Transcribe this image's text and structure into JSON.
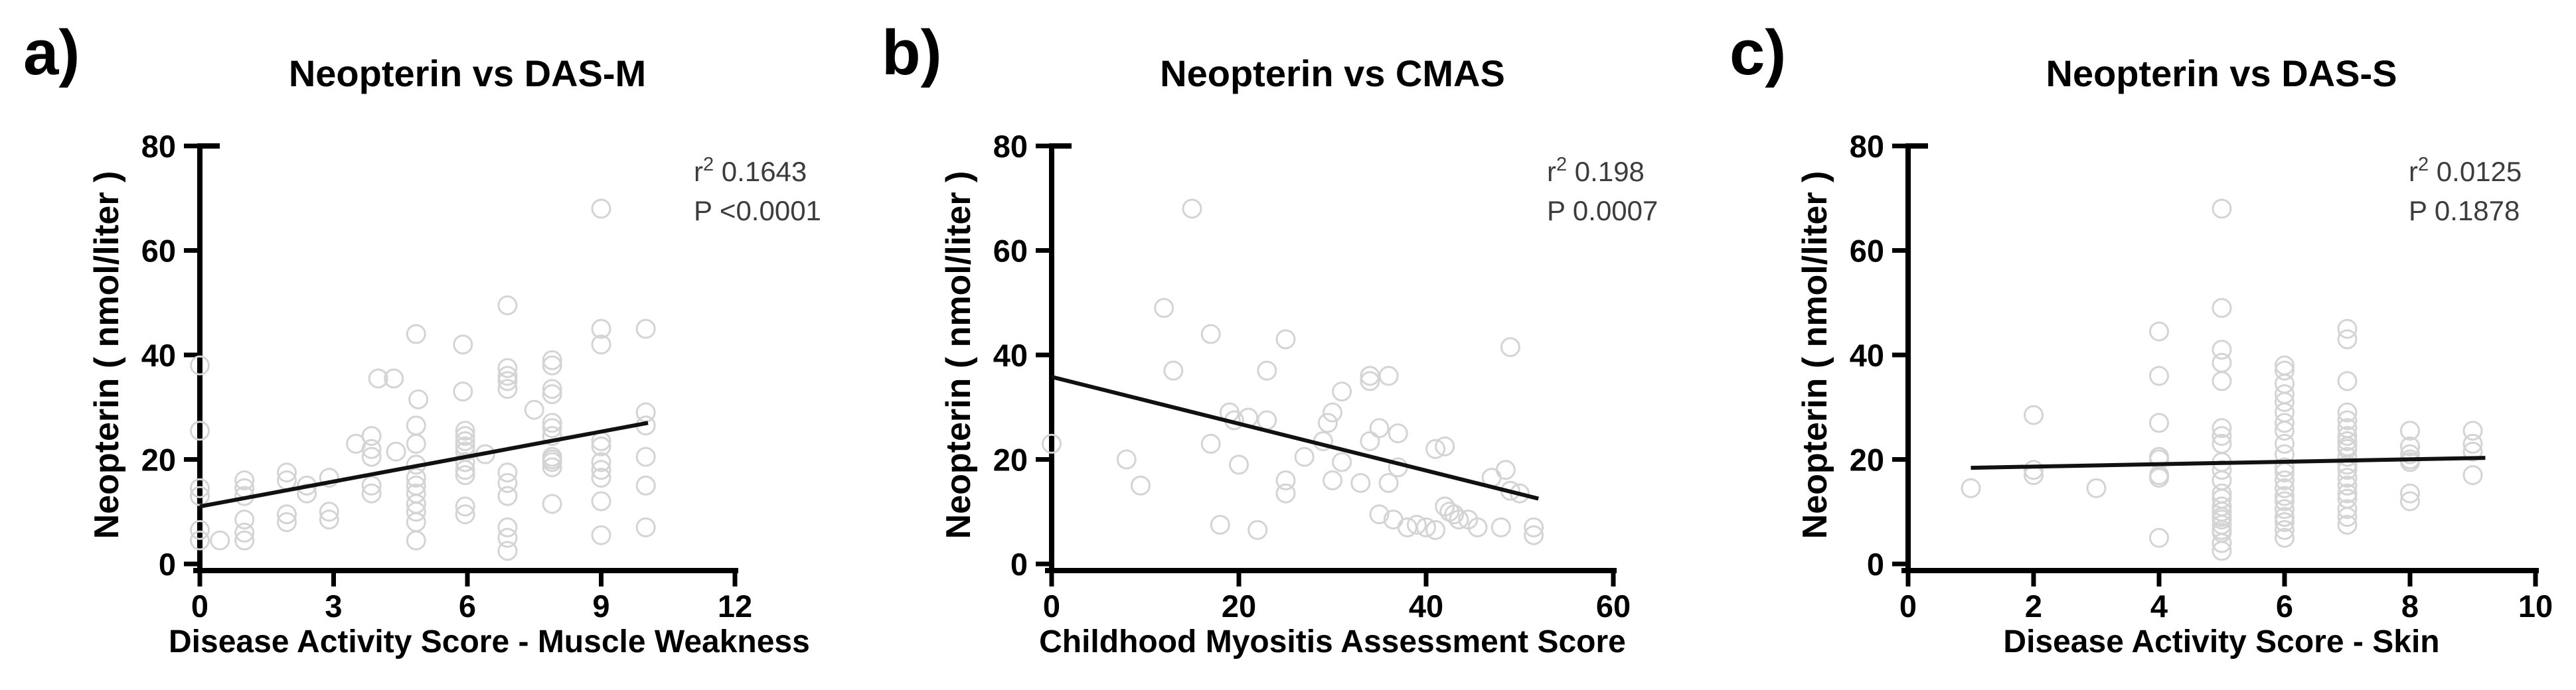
{
  "figure": {
    "background_color": "#ffffff",
    "point_color": "#d4d4d4",
    "regression_color": "#111111",
    "axis_color": "#000000",
    "stats_text_color": "#3c3c3c"
  },
  "chart_data": [
    {
      "type": "scatter",
      "panel_letter": "a)",
      "title": "Neopterin vs DAS-M",
      "xlabel": "Disease Activity Score - Muscle Weakness",
      "ylabel": "Neopterin ( nmol/liter )",
      "stats": {
        "r_base": "r",
        "r_sup": "2",
        "r_value": " 0.1643",
        "p_text": "P <0.0001"
      },
      "xlim": [
        0,
        12
      ],
      "ylim": [
        0,
        80
      ],
      "xticks": [
        0,
        3,
        6,
        9,
        12
      ],
      "yticks": [
        0,
        20,
        40,
        60,
        80
      ],
      "grid": false,
      "regression": {
        "x1": 0,
        "y1": 11,
        "x2": 10.05,
        "y2": 27
      },
      "points": [
        [
          0,
          38
        ],
        [
          0,
          25.5
        ],
        [
          0,
          14.5
        ],
        [
          0,
          13
        ],
        [
          0,
          6.5
        ],
        [
          0,
          4.5
        ],
        [
          0.45,
          4.5
        ],
        [
          1,
          16
        ],
        [
          1,
          14.5
        ],
        [
          1,
          13
        ],
        [
          1,
          8.5
        ],
        [
          1,
          6
        ],
        [
          1,
          4.5
        ],
        [
          1.95,
          17.5
        ],
        [
          1.95,
          16
        ],
        [
          1.95,
          9.5
        ],
        [
          1.95,
          8
        ],
        [
          2.4,
          15
        ],
        [
          2.4,
          13.5
        ],
        [
          2.9,
          16.5
        ],
        [
          2.9,
          10
        ],
        [
          2.9,
          8.5
        ],
        [
          3.5,
          23
        ],
        [
          3.85,
          24.5
        ],
        [
          3.85,
          22
        ],
        [
          3.85,
          20.5
        ],
        [
          3.85,
          15
        ],
        [
          3.85,
          13.5
        ],
        [
          4,
          35.5
        ],
        [
          4.35,
          35.5
        ],
        [
          4.4,
          21.5
        ],
        [
          4.85,
          44
        ],
        [
          4.9,
          31.5
        ],
        [
          4.85,
          26.5
        ],
        [
          4.85,
          23
        ],
        [
          4.85,
          19
        ],
        [
          4.85,
          16.5
        ],
        [
          4.85,
          15
        ],
        [
          4.85,
          13.5
        ],
        [
          4.85,
          11.5
        ],
        [
          4.85,
          10
        ],
        [
          4.85,
          8
        ],
        [
          4.85,
          4.5
        ],
        [
          5.9,
          42
        ],
        [
          5.9,
          33
        ],
        [
          5.95,
          25.5
        ],
        [
          5.95,
          24.5
        ],
        [
          5.95,
          23.5
        ],
        [
          5.95,
          22.5
        ],
        [
          5.95,
          21.5
        ],
        [
          5.95,
          19.5
        ],
        [
          5.95,
          18
        ],
        [
          5.95,
          17
        ],
        [
          5.95,
          11
        ],
        [
          5.95,
          9.5
        ],
        [
          6.4,
          21
        ],
        [
          6.9,
          49.5
        ],
        [
          6.9,
          37.5
        ],
        [
          6.9,
          36
        ],
        [
          6.9,
          35
        ],
        [
          6.9,
          33.5
        ],
        [
          6.9,
          17.5
        ],
        [
          6.9,
          15.5
        ],
        [
          6.9,
          13
        ],
        [
          6.9,
          7
        ],
        [
          6.9,
          5
        ],
        [
          6.9,
          2.5
        ],
        [
          7.5,
          29.5
        ],
        [
          7.9,
          39
        ],
        [
          7.9,
          38
        ],
        [
          7.9,
          33.5
        ],
        [
          7.9,
          32.5
        ],
        [
          7.9,
          27
        ],
        [
          7.9,
          26
        ],
        [
          7.9,
          24.5
        ],
        [
          7.9,
          20.5
        ],
        [
          7.9,
          20
        ],
        [
          7.9,
          19.5
        ],
        [
          7.9,
          18.5
        ],
        [
          7.9,
          11.5
        ],
        [
          9,
          68
        ],
        [
          9,
          45
        ],
        [
          9,
          42
        ],
        [
          9,
          23.5
        ],
        [
          9,
          22.5
        ],
        [
          9,
          19.5
        ],
        [
          9,
          18
        ],
        [
          9,
          16.5
        ],
        [
          9,
          12
        ],
        [
          9,
          5.5
        ],
        [
          10,
          45
        ],
        [
          10,
          29
        ],
        [
          10,
          26.5
        ],
        [
          10,
          20.5
        ],
        [
          10,
          15
        ],
        [
          10,
          7
        ]
      ]
    },
    {
      "type": "scatter",
      "panel_letter": "b)",
      "title": "Neopterin vs CMAS",
      "xlabel": "Childhood Myositis Assessment Score",
      "ylabel": "Neopterin ( nmol/liter )",
      "stats": {
        "r_base": "r",
        "r_sup": "2",
        "r_value": " 0.198",
        "p_text": "P 0.0007"
      },
      "xlim": [
        0,
        60
      ],
      "ylim": [
        0,
        80
      ],
      "xticks": [
        0,
        20,
        40,
        60
      ],
      "yticks": [
        0,
        20,
        40,
        60,
        80
      ],
      "grid": false,
      "regression": {
        "x1": 0,
        "y1": 35.8,
        "x2": 52,
        "y2": 12.5
      },
      "points": [
        [
          0,
          23
        ],
        [
          8,
          20
        ],
        [
          9.5,
          15
        ],
        [
          12,
          49
        ],
        [
          13,
          37
        ],
        [
          15,
          68
        ],
        [
          17,
          44
        ],
        [
          17,
          23
        ],
        [
          18,
          7.5
        ],
        [
          19,
          29
        ],
        [
          19.5,
          27.5
        ],
        [
          20,
          19
        ],
        [
          21,
          28
        ],
        [
          22,
          6.5
        ],
        [
          23,
          37
        ],
        [
          23,
          27.5
        ],
        [
          25,
          43
        ],
        [
          25,
          16
        ],
        [
          25,
          13.5
        ],
        [
          27,
          20.5
        ],
        [
          29,
          23.5
        ],
        [
          29.5,
          27
        ],
        [
          30,
          29
        ],
        [
          30,
          16
        ],
        [
          31,
          33
        ],
        [
          31,
          19.5
        ],
        [
          33,
          15.5
        ],
        [
          34,
          36
        ],
        [
          34,
          35
        ],
        [
          34,
          23.5
        ],
        [
          35,
          26
        ],
        [
          35,
          9.5
        ],
        [
          36,
          36
        ],
        [
          36,
          15.5
        ],
        [
          36.5,
          8.5
        ],
        [
          37,
          25
        ],
        [
          37,
          18.5
        ],
        [
          38,
          7
        ],
        [
          39,
          7.5
        ],
        [
          40,
          7
        ],
        [
          41,
          6.5
        ],
        [
          41,
          22
        ],
        [
          42,
          22.5
        ],
        [
          42,
          11
        ],
        [
          42.5,
          10
        ],
        [
          43,
          9.5
        ],
        [
          43.5,
          8.5
        ],
        [
          44.5,
          8.5
        ],
        [
          45.5,
          7
        ],
        [
          47,
          16.5
        ],
        [
          48.5,
          18
        ],
        [
          49,
          41.5
        ],
        [
          49,
          14
        ],
        [
          50,
          13.5
        ],
        [
          48,
          7
        ],
        [
          51.5,
          7
        ],
        [
          51.5,
          5.5
        ]
      ]
    },
    {
      "type": "scatter",
      "panel_letter": "c)",
      "title": "Neopterin vs DAS-S",
      "xlabel": "Disease Activity Score - Skin",
      "ylabel": "Neopterin ( nmol/liter )",
      "stats": {
        "r_base": "r",
        "r_sup": "2",
        "r_value": " 0.0125",
        "p_text": "P 0.1878"
      },
      "xlim": [
        0,
        10
      ],
      "ylim": [
        0,
        80
      ],
      "xticks": [
        0,
        2,
        4,
        6,
        8,
        10
      ],
      "yticks": [
        0,
        20,
        40,
        60,
        80
      ],
      "grid": false,
      "regression": {
        "x1": 1,
        "y1": 18.4,
        "x2": 9.2,
        "y2": 20.3
      },
      "points": [
        [
          1,
          14.5
        ],
        [
          2,
          28.5
        ],
        [
          2,
          18
        ],
        [
          2,
          17
        ],
        [
          3,
          14.5
        ],
        [
          4,
          44.5
        ],
        [
          4,
          36
        ],
        [
          4,
          27
        ],
        [
          4,
          20.5
        ],
        [
          4,
          20
        ],
        [
          4,
          17
        ],
        [
          4,
          16.5
        ],
        [
          4,
          5
        ],
        [
          5,
          68
        ],
        [
          5,
          49
        ],
        [
          5,
          41
        ],
        [
          5,
          38.5
        ],
        [
          5,
          35
        ],
        [
          5,
          26
        ],
        [
          5,
          24.5
        ],
        [
          5,
          23
        ],
        [
          5,
          19.5
        ],
        [
          5,
          18
        ],
        [
          5,
          16
        ],
        [
          5,
          13.5
        ],
        [
          5,
          12.5
        ],
        [
          5,
          11
        ],
        [
          5,
          10
        ],
        [
          5,
          9
        ],
        [
          5,
          8.5
        ],
        [
          5,
          7.5
        ],
        [
          5,
          6.5
        ],
        [
          5,
          6
        ],
        [
          5,
          4
        ],
        [
          5,
          2.5
        ],
        [
          6,
          38
        ],
        [
          6,
          37
        ],
        [
          6,
          34.5
        ],
        [
          6,
          32.5
        ],
        [
          6,
          31
        ],
        [
          6,
          29
        ],
        [
          6,
          27
        ],
        [
          6,
          25.5
        ],
        [
          6,
          23
        ],
        [
          6,
          21
        ],
        [
          6,
          18.5
        ],
        [
          6,
          17.5
        ],
        [
          6,
          16
        ],
        [
          6,
          14.5
        ],
        [
          6,
          13
        ],
        [
          6,
          12
        ],
        [
          6,
          10.5
        ],
        [
          6,
          9
        ],
        [
          6,
          8
        ],
        [
          6,
          6.5
        ],
        [
          6,
          5
        ],
        [
          7,
          45
        ],
        [
          7,
          43
        ],
        [
          7,
          35
        ],
        [
          7,
          29
        ],
        [
          7,
          27.5
        ],
        [
          7,
          26
        ],
        [
          7,
          24.5
        ],
        [
          7,
          23.5
        ],
        [
          7,
          22.5
        ],
        [
          7,
          22
        ],
        [
          7,
          20.5
        ],
        [
          7,
          19
        ],
        [
          7,
          18
        ],
        [
          7,
          16.5
        ],
        [
          7,
          15
        ],
        [
          7,
          13.5
        ],
        [
          7,
          12.5
        ],
        [
          7,
          10.5
        ],
        [
          7,
          9
        ],
        [
          7,
          7.5
        ],
        [
          8,
          25.5
        ],
        [
          8,
          22.5
        ],
        [
          8,
          21
        ],
        [
          8,
          20
        ],
        [
          8,
          19.5
        ],
        [
          8,
          13.5
        ],
        [
          8,
          12
        ],
        [
          9,
          25.5
        ],
        [
          9,
          23
        ],
        [
          9,
          21.5
        ],
        [
          9,
          17
        ]
      ]
    }
  ]
}
